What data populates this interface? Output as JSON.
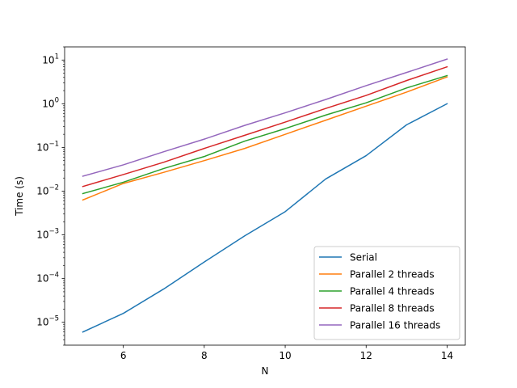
{
  "chart_data": {
    "type": "line",
    "title": "",
    "xlabel": "N",
    "ylabel": "Time (s)",
    "x": [
      5,
      6,
      7,
      8,
      9,
      10,
      11,
      12,
      13,
      14
    ],
    "xlim": [
      4.55,
      14.45
    ],
    "ylim": [
      3e-06,
      20
    ],
    "yscale": "log",
    "x_ticks": [
      6,
      8,
      10,
      12,
      14
    ],
    "x_tick_labels": [
      "6",
      "8",
      "10",
      "12",
      "14"
    ],
    "y_ticks": [
      1e-05,
      0.0001,
      0.001,
      0.01,
      0.1,
      1,
      10
    ],
    "y_tick_labels": [
      {
        "base": "10",
        "exp": "−5"
      },
      {
        "base": "10",
        "exp": "−4"
      },
      {
        "base": "10",
        "exp": "−3"
      },
      {
        "base": "10",
        "exp": "−2"
      },
      {
        "base": "10",
        "exp": "−1"
      },
      {
        "base": "10",
        "exp": "0"
      },
      {
        "base": "10",
        "exp": "1"
      }
    ],
    "grid": false,
    "legend_position": "lower-right",
    "series": [
      {
        "name": "Serial",
        "color": "#1f77b4",
        "values": [
          6e-06,
          1.6e-05,
          5.8e-05,
          0.00024,
          0.00095,
          0.0034,
          0.019,
          0.065,
          0.33,
          1.0
        ]
      },
      {
        "name": "Parallel 2 threads",
        "color": "#ff7f0e",
        "values": [
          0.0063,
          0.015,
          0.027,
          0.05,
          0.095,
          0.2,
          0.42,
          0.88,
          1.85,
          4.1
        ]
      },
      {
        "name": "Parallel 4 threads",
        "color": "#2ca02c",
        "values": [
          0.0088,
          0.016,
          0.033,
          0.062,
          0.14,
          0.27,
          0.55,
          1.05,
          2.3,
          4.4
        ]
      },
      {
        "name": "Parallel 8 threads",
        "color": "#d62728",
        "values": [
          0.0128,
          0.024,
          0.046,
          0.095,
          0.19,
          0.38,
          0.78,
          1.55,
          3.4,
          7.0
        ]
      },
      {
        "name": "Parallel 16 threads",
        "color": "#9467bd",
        "values": [
          0.022,
          0.04,
          0.08,
          0.155,
          0.32,
          0.62,
          1.25,
          2.6,
          5.2,
          10.5
        ]
      }
    ]
  }
}
